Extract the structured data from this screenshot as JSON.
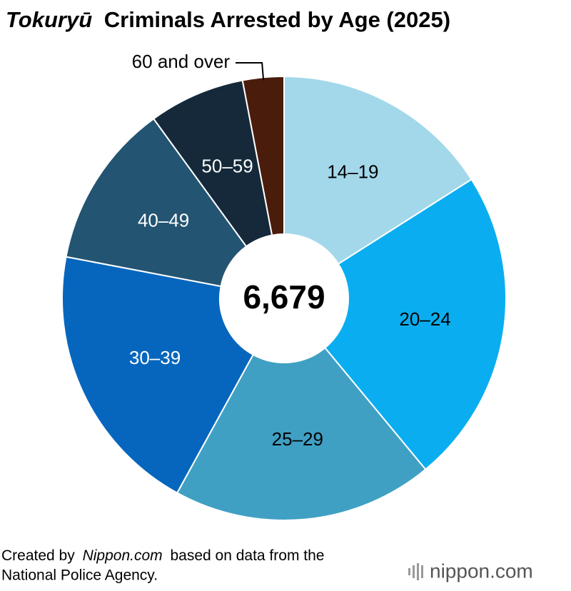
{
  "chart_data": {
    "type": "donut",
    "title": [
      "Tokuryū",
      "Criminals Arrested by Age (2025)"
    ],
    "center_label": "6,679",
    "categories": [
      "14–19",
      "20–24",
      "25–29",
      "30–39",
      "40–49",
      "50–59",
      "60 and over"
    ],
    "values": [
      16,
      23,
      19,
      20,
      12,
      7,
      3
    ],
    "colors": [
      "#a3d8ea",
      "#0aaef0",
      "#40a0c4",
      "#0666be",
      "#235472",
      "#15293a",
      "#4a1c0c"
    ],
    "label_colors": [
      "#000000",
      "#000000",
      "#000000",
      "#ffffff",
      "#ffffff",
      "#ffffff",
      "#000000"
    ],
    "source": [
      "Created by",
      "Nippon.com",
      "based on data from the",
      "National Police Agency."
    ],
    "logo": "nippon.com"
  }
}
